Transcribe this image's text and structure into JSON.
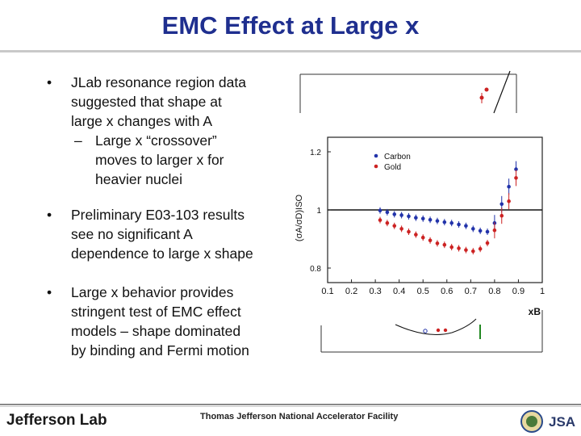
{
  "slide": {
    "title": "EMC Effect at Large x",
    "bullets": {
      "b1": [
        "JLab resonance region data",
        "suggested that shape at",
        "large x changes with A"
      ],
      "b1_sub": [
        "Large x “crossover”",
        "moves to larger x for",
        "heavier nuclei"
      ],
      "b2": [
        "Preliminary E03-103 results",
        "see no significant A",
        "dependence to large x shape"
      ],
      "b3": [
        "Large x behavior provides",
        "stringent test of EMC effect",
        "models – shape dominated",
        "by binding and Fermi motion"
      ]
    },
    "bullet_glyph": "•",
    "dash_glyph": "–"
  },
  "footer": {
    "logo_text": "Jefferson Lab",
    "facility": "Thomas Jefferson National Accelerator Facility",
    "logo_right": "JSA"
  },
  "chart_data": {
    "type": "scatter",
    "ylabel": "(σA/σD)ISO",
    "xlabel": "xB",
    "xlim": [
      0.1,
      1.0
    ],
    "ylim": [
      0.75,
      1.25
    ],
    "x_ticks": [
      "0.1",
      "0.2",
      "0.3",
      "0.4",
      "0.5",
      "0.6",
      "0.7",
      "0.8",
      "0.9",
      "1"
    ],
    "y_ticks": [
      "0.8",
      "1",
      "1.2"
    ],
    "reference_line": 1.0,
    "series": [
      {
        "name": "Carbon",
        "color": "#2233aa",
        "x": [
          0.32,
          0.35,
          0.38,
          0.41,
          0.44,
          0.47,
          0.5,
          0.53,
          0.56,
          0.59,
          0.62,
          0.65,
          0.68,
          0.71,
          0.74,
          0.77,
          0.8,
          0.83,
          0.86,
          0.89
        ],
        "y": [
          0.998,
          0.992,
          0.985,
          0.982,
          0.978,
          0.973,
          0.97,
          0.966,
          0.962,
          0.958,
          0.955,
          0.95,
          0.945,
          0.935,
          0.928,
          0.925,
          0.955,
          1.02,
          1.08,
          1.14
        ]
      },
      {
        "name": "Gold",
        "color": "#cc2222",
        "x": [
          0.32,
          0.35,
          0.38,
          0.41,
          0.44,
          0.47,
          0.5,
          0.53,
          0.56,
          0.59,
          0.62,
          0.65,
          0.68,
          0.71,
          0.74,
          0.77,
          0.8,
          0.83,
          0.86,
          0.89
        ],
        "y": [
          0.965,
          0.955,
          0.945,
          0.935,
          0.925,
          0.915,
          0.905,
          0.895,
          0.885,
          0.88,
          0.872,
          0.868,
          0.862,
          0.858,
          0.866,
          0.886,
          0.93,
          0.98,
          1.03,
          1.11
        ]
      }
    ]
  }
}
